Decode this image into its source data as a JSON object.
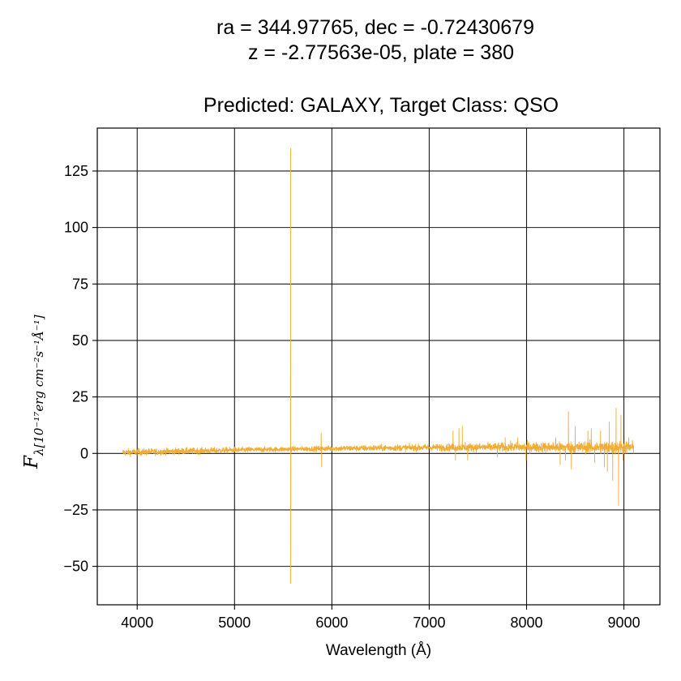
{
  "chart_data": {
    "type": "line",
    "title_lines": [
      "ra = 344.97765, dec = -0.72430679",
      "z = -2.77563e-05, plate = 380",
      "Predicted: GALAXY, Target Class: QSO"
    ],
    "xlabel": "Wavelength (Å)",
    "ylabel": {
      "main": "F",
      "subscript": "λ[10⁻¹⁷erg cm⁻²s⁻¹Å⁻¹]"
    },
    "xlim": [
      3590,
      9370
    ],
    "ylim": [
      -67,
      144
    ],
    "xticks": [
      4000,
      5000,
      6000,
      7000,
      8000,
      9000
    ],
    "yticks": [
      -50,
      -25,
      0,
      25,
      50,
      75,
      100,
      125
    ],
    "ytick_labels": [
      "−50",
      "−25",
      "0",
      "25",
      "50",
      "75",
      "100",
      "125"
    ],
    "grid": true,
    "series": [
      {
        "color": "#f0ad35",
        "x_range": [
          3850,
          9100
        ],
        "baseline": [
          [
            3850,
            0.4
          ],
          [
            5000,
            1.5
          ],
          [
            6000,
            2.2
          ],
          [
            7000,
            2.6
          ],
          [
            8000,
            2.8
          ],
          [
            9100,
            2.6
          ]
        ],
        "noise": [
          [
            3850,
            1.5
          ],
          [
            5500,
            1.0
          ],
          [
            7000,
            1.4
          ],
          [
            8300,
            2.2
          ],
          [
            9100,
            2.8
          ]
        ],
        "spikes": [
          [
            5577,
            135
          ],
          [
            5577,
            -57.5
          ],
          [
            5890,
            9
          ],
          [
            5895,
            -6
          ],
          [
            7245,
            10
          ],
          [
            7270,
            -3
          ],
          [
            7305,
            11
          ],
          [
            7340,
            12
          ],
          [
            7370,
            5
          ],
          [
            7395,
            -3
          ],
          [
            7700,
            -1.5
          ],
          [
            7780,
            7
          ],
          [
            7910,
            7
          ],
          [
            7960,
            2
          ],
          [
            7995,
            -3
          ],
          [
            8300,
            7
          ],
          [
            8345,
            -5
          ],
          [
            8400,
            -3
          ],
          [
            8430,
            18.5
          ],
          [
            8460,
            -7
          ],
          [
            8500,
            12
          ],
          [
            8530,
            1
          ],
          [
            8630,
            10
          ],
          [
            8665,
            11
          ],
          [
            8700,
            -4
          ],
          [
            8760,
            10
          ],
          [
            8800,
            -6
          ],
          [
            8830,
            -8
          ],
          [
            8850,
            14
          ],
          [
            8885,
            -12
          ],
          [
            8920,
            20
          ],
          [
            8945,
            -23
          ],
          [
            8970,
            17
          ],
          [
            8990,
            -3
          ],
          [
            9050,
            7
          ]
        ]
      }
    ]
  }
}
